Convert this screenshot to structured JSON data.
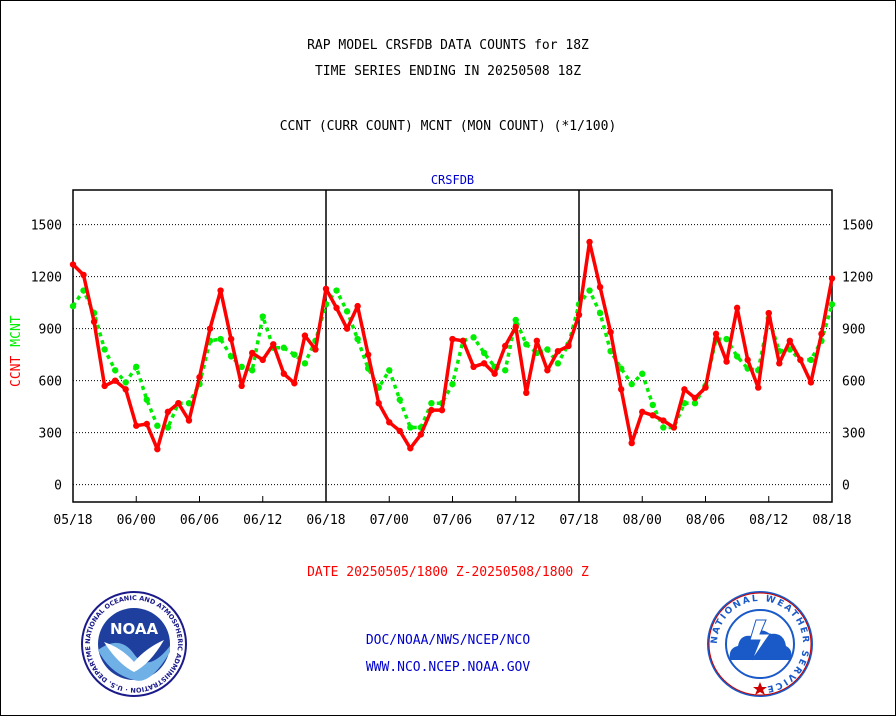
{
  "header": {
    "title_line1": "RAP MODEL CRSFDB DATA COUNTS for 18Z",
    "title_line2": "TIME SERIES ENDING IN 20250508 18Z",
    "subtitle": "CCNT (CURR COUNT) MCNT (MON COUNT) (*1/100)"
  },
  "footer": {
    "date_range": "DATE 20250505/1800 Z-20250508/1800 Z",
    "org_path": "DOC/NOAA/NWS/NCEP/NCO",
    "website": "WWW.NCO.NCEP.NOAA.GOV"
  },
  "logos": {
    "left": "NOAA",
    "left_ring": "NATIONAL OCEANIC AND ATMOSPHERIC ADMINISTRATION · U.S. DEPARTMENT OF COMMERCE ·",
    "right_ring": "NATIONAL WEATHER SERVICE"
  },
  "colors": {
    "ccnt": "#ff0000",
    "mcnt": "#00ee00",
    "plot_label": "#0000cc",
    "frame": "#000000"
  },
  "chart_data": {
    "type": "line",
    "plot_label": "CRSFDB",
    "ylabel_ccnt": "CCNT",
    "ylabel_mcnt": "MCNT",
    "ylim": [
      -100,
      1700
    ],
    "yticks": [
      0,
      300,
      600,
      900,
      1200,
      1500
    ],
    "xlim": [
      0,
      72
    ],
    "xticks": [
      0,
      6,
      12,
      18,
      24,
      30,
      36,
      42,
      48,
      54,
      60,
      66,
      72
    ],
    "xtick_labels": [
      "05/18",
      "06/00",
      "06/06",
      "06/12",
      "06/18",
      "07/00",
      "07/06",
      "07/12",
      "07/18",
      "08/00",
      "08/06",
      "08/12",
      "08/18"
    ],
    "day_separators": [
      24,
      48
    ],
    "grid": "horizontal dotted",
    "series": [
      {
        "name": "CCNT",
        "style": "solid",
        "x": [
          0,
          1,
          2,
          3,
          4,
          5,
          6,
          7,
          8,
          9,
          10,
          11,
          12,
          13,
          14,
          15,
          16,
          17,
          18,
          19,
          20,
          21,
          22,
          23,
          24,
          25,
          26,
          27,
          28,
          29,
          30,
          31,
          32,
          33,
          34,
          35,
          36,
          37,
          38,
          39,
          40,
          41,
          42,
          43,
          44,
          45,
          46,
          47,
          48,
          49,
          50,
          51,
          52,
          53,
          54,
          55,
          56,
          57,
          58,
          59,
          60,
          61,
          62,
          63,
          64,
          65,
          66,
          67,
          68,
          69,
          70,
          71,
          72
        ],
        "values": [
          1270,
          1210,
          940,
          570,
          600,
          550,
          340,
          350,
          205,
          420,
          470,
          370,
          620,
          900,
          1120,
          840,
          570,
          760,
          720,
          810,
          640,
          585,
          860,
          780,
          1130,
          1020,
          900,
          1030,
          750,
          470,
          360,
          310,
          210,
          290,
          430,
          430,
          840,
          830,
          680,
          700,
          640,
          800,
          910,
          530,
          830,
          660,
          770,
          800,
          980,
          1400,
          1140,
          880,
          550,
          240,
          420,
          400,
          370,
          330,
          550,
          500,
          560,
          870,
          710,
          1020,
          720,
          560,
          990,
          700,
          830,
          720,
          590,
          870,
          1190
        ]
      },
      {
        "name": "MCNT",
        "style": "dotted",
        "x": [
          0,
          1,
          2,
          3,
          4,
          5,
          6,
          7,
          8,
          9,
          10,
          11,
          12,
          13,
          14,
          15,
          16,
          17,
          18,
          19,
          20,
          21,
          22,
          23,
          24,
          25,
          26,
          27,
          28,
          29,
          30,
          31,
          32,
          33,
          34,
          35,
          36,
          37,
          38,
          39,
          40,
          41,
          42,
          43,
          44,
          45,
          46,
          47,
          48,
          49,
          50,
          51,
          52,
          53,
          54,
          55,
          56,
          57,
          58,
          59,
          60,
          61,
          62,
          63,
          64,
          65,
          66,
          67,
          68,
          69,
          70,
          71,
          72
        ],
        "values": [
          1030,
          1120,
          990,
          780,
          660,
          590,
          680,
          490,
          340,
          330,
          470,
          470,
          580,
          830,
          840,
          740,
          680,
          660,
          970,
          790,
          790,
          750,
          700,
          830,
          1040,
          1120,
          1000,
          840,
          670,
          560,
          660,
          490,
          330,
          330,
          470,
          470,
          580,
          830,
          850,
          760,
          680,
          660,
          950,
          810,
          760,
          780,
          700,
          810,
          1040,
          1120,
          990,
          770,
          670,
          580,
          640,
          460,
          330,
          330,
          470,
          470,
          570,
          840,
          840,
          740,
          670,
          660,
          960,
          770,
          780,
          720,
          720,
          830,
          1040
        ]
      }
    ]
  }
}
